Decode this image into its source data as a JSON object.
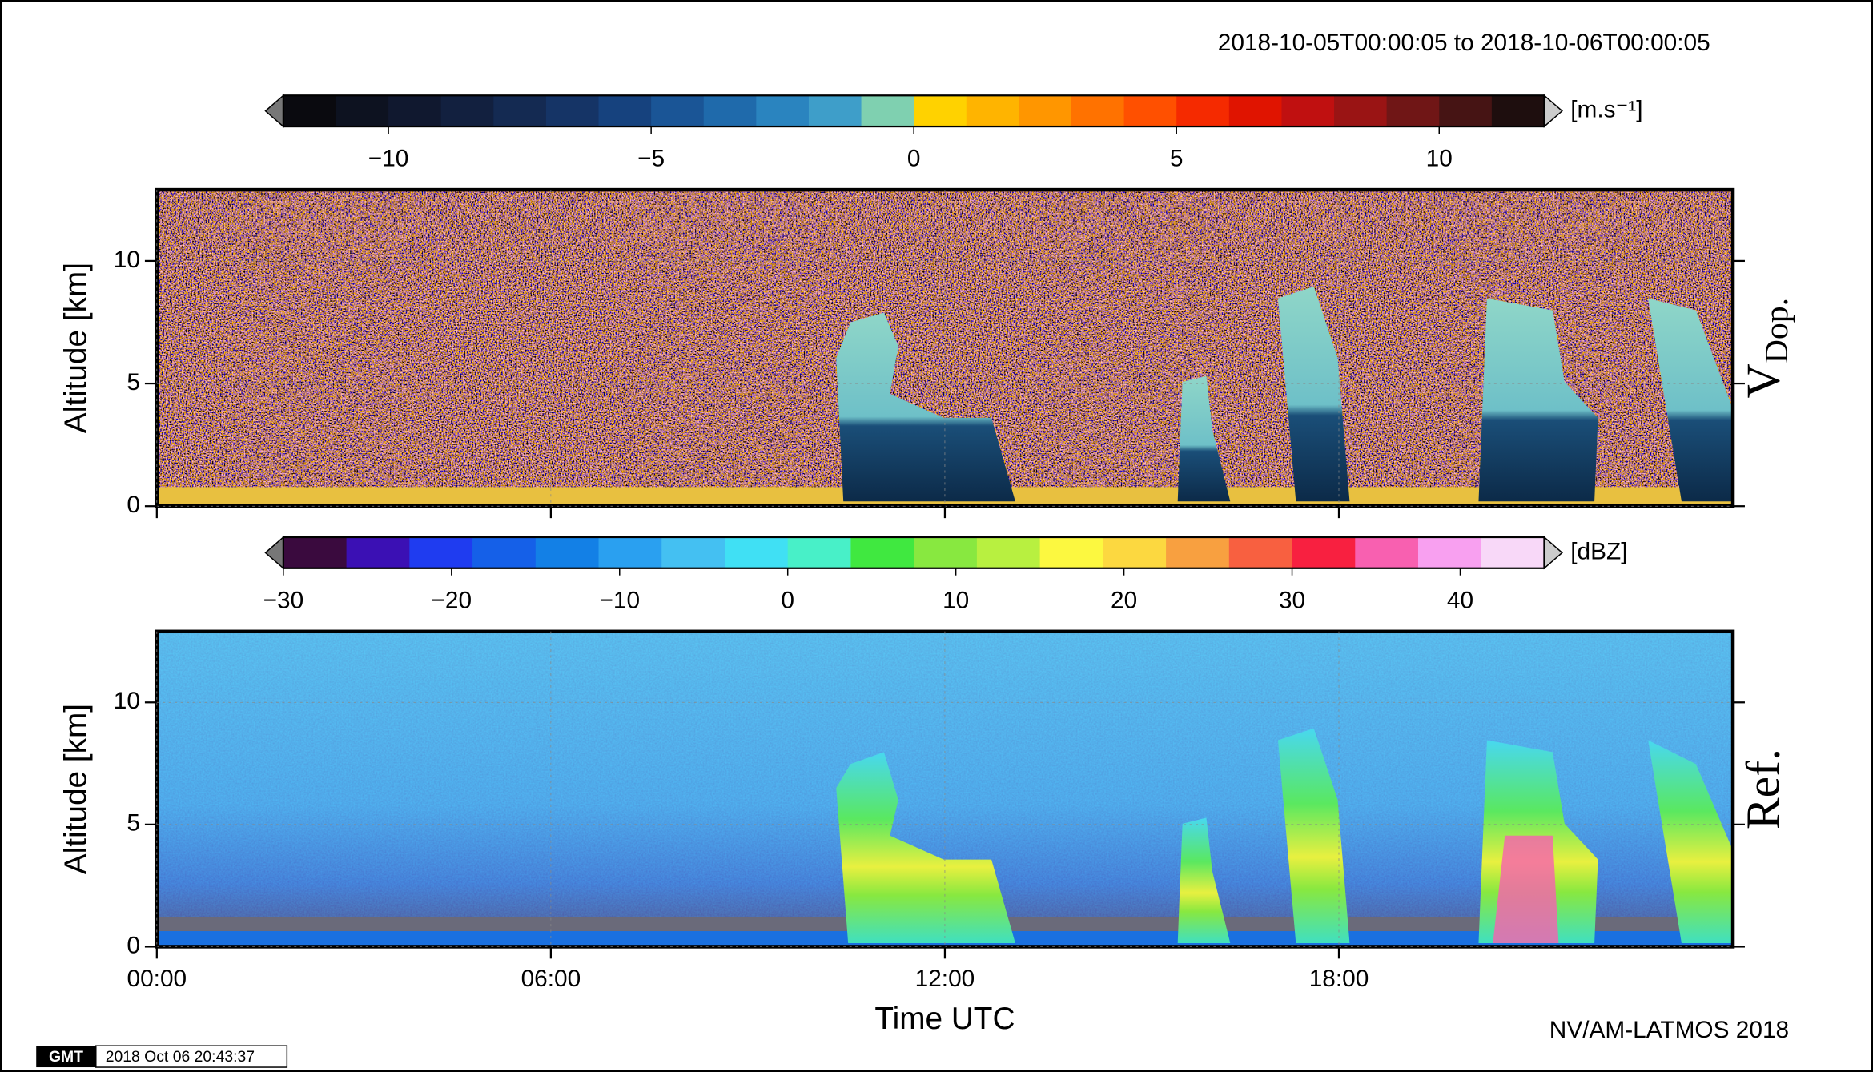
{
  "header": {
    "title": "2018-10-05T00:00:05 to 2018-10-06T00:00:05"
  },
  "chart_data": [
    {
      "type": "heatmap",
      "panel_label": "V",
      "panel_label_sub": "Dop.",
      "ylabel": "Altitude [km]",
      "xlim": [
        0,
        24
      ],
      "xticks": [
        0,
        6,
        12,
        18
      ],
      "ylim": [
        0,
        12.9
      ],
      "yticks": [
        0,
        5,
        10
      ],
      "colorbar": {
        "unit": "[m.s⁻¹]",
        "lim": [
          -12,
          12
        ],
        "ticks": [
          {
            "value": -10,
            "label": "−10"
          },
          {
            "value": -5,
            "label": "−5"
          },
          0,
          5,
          10
        ],
        "colors": [
          "#0a0a0f",
          "#0d1220",
          "#10182f",
          "#12203f",
          "#142a52",
          "#153466",
          "#16427e",
          "#1a5596",
          "#1f6aab",
          "#2a84bf",
          "#3e9ec9",
          "#7fd0b0",
          "#ffd200",
          "#ffb400",
          "#ff9600",
          "#ff7200",
          "#ff5000",
          "#f52a00",
          "#e01400",
          "#c01010",
          "#9a1414",
          "#701616",
          "#461414",
          "#1e0e0e"
        ]
      }
    },
    {
      "type": "heatmap",
      "panel_label": "Ref.",
      "ylabel": "Altitude [km]",
      "xlabel": "Time UTC",
      "xlim": [
        0,
        24
      ],
      "xticks": [
        {
          "value": 0,
          "label": "00:00"
        },
        {
          "value": 6,
          "label": "06:00"
        },
        {
          "value": 12,
          "label": "12:00"
        },
        {
          "value": 18,
          "label": "18:00"
        }
      ],
      "ylim": [
        0,
        12.9
      ],
      "yticks": [
        0,
        5,
        10
      ],
      "colorbar": {
        "unit": "[dBZ]",
        "lim": [
          -30,
          45
        ],
        "ticks": [
          {
            "value": -30,
            "label": "−30"
          },
          {
            "value": -20,
            "label": "−20"
          },
          {
            "value": -10,
            "label": "−10"
          },
          0,
          10,
          20,
          30,
          40
        ],
        "colors": [
          "#3a0a3e",
          "#3b10b4",
          "#1f3cf0",
          "#1560e8",
          "#1380e6",
          "#2aa0f0",
          "#44c0f2",
          "#40e0f4",
          "#48f0c8",
          "#40e840",
          "#88e840",
          "#b8f040",
          "#fcf840",
          "#fcd840",
          "#f8a040",
          "#f86040",
          "#f82040",
          "#f860b0",
          "#f8a0f0",
          "#f8d8f8"
        ]
      }
    }
  ],
  "footer": {
    "credit": "NV/AM-LATMOS 2018",
    "logo": "GMT",
    "stamp": "2018 Oct 06 20:43:37"
  }
}
